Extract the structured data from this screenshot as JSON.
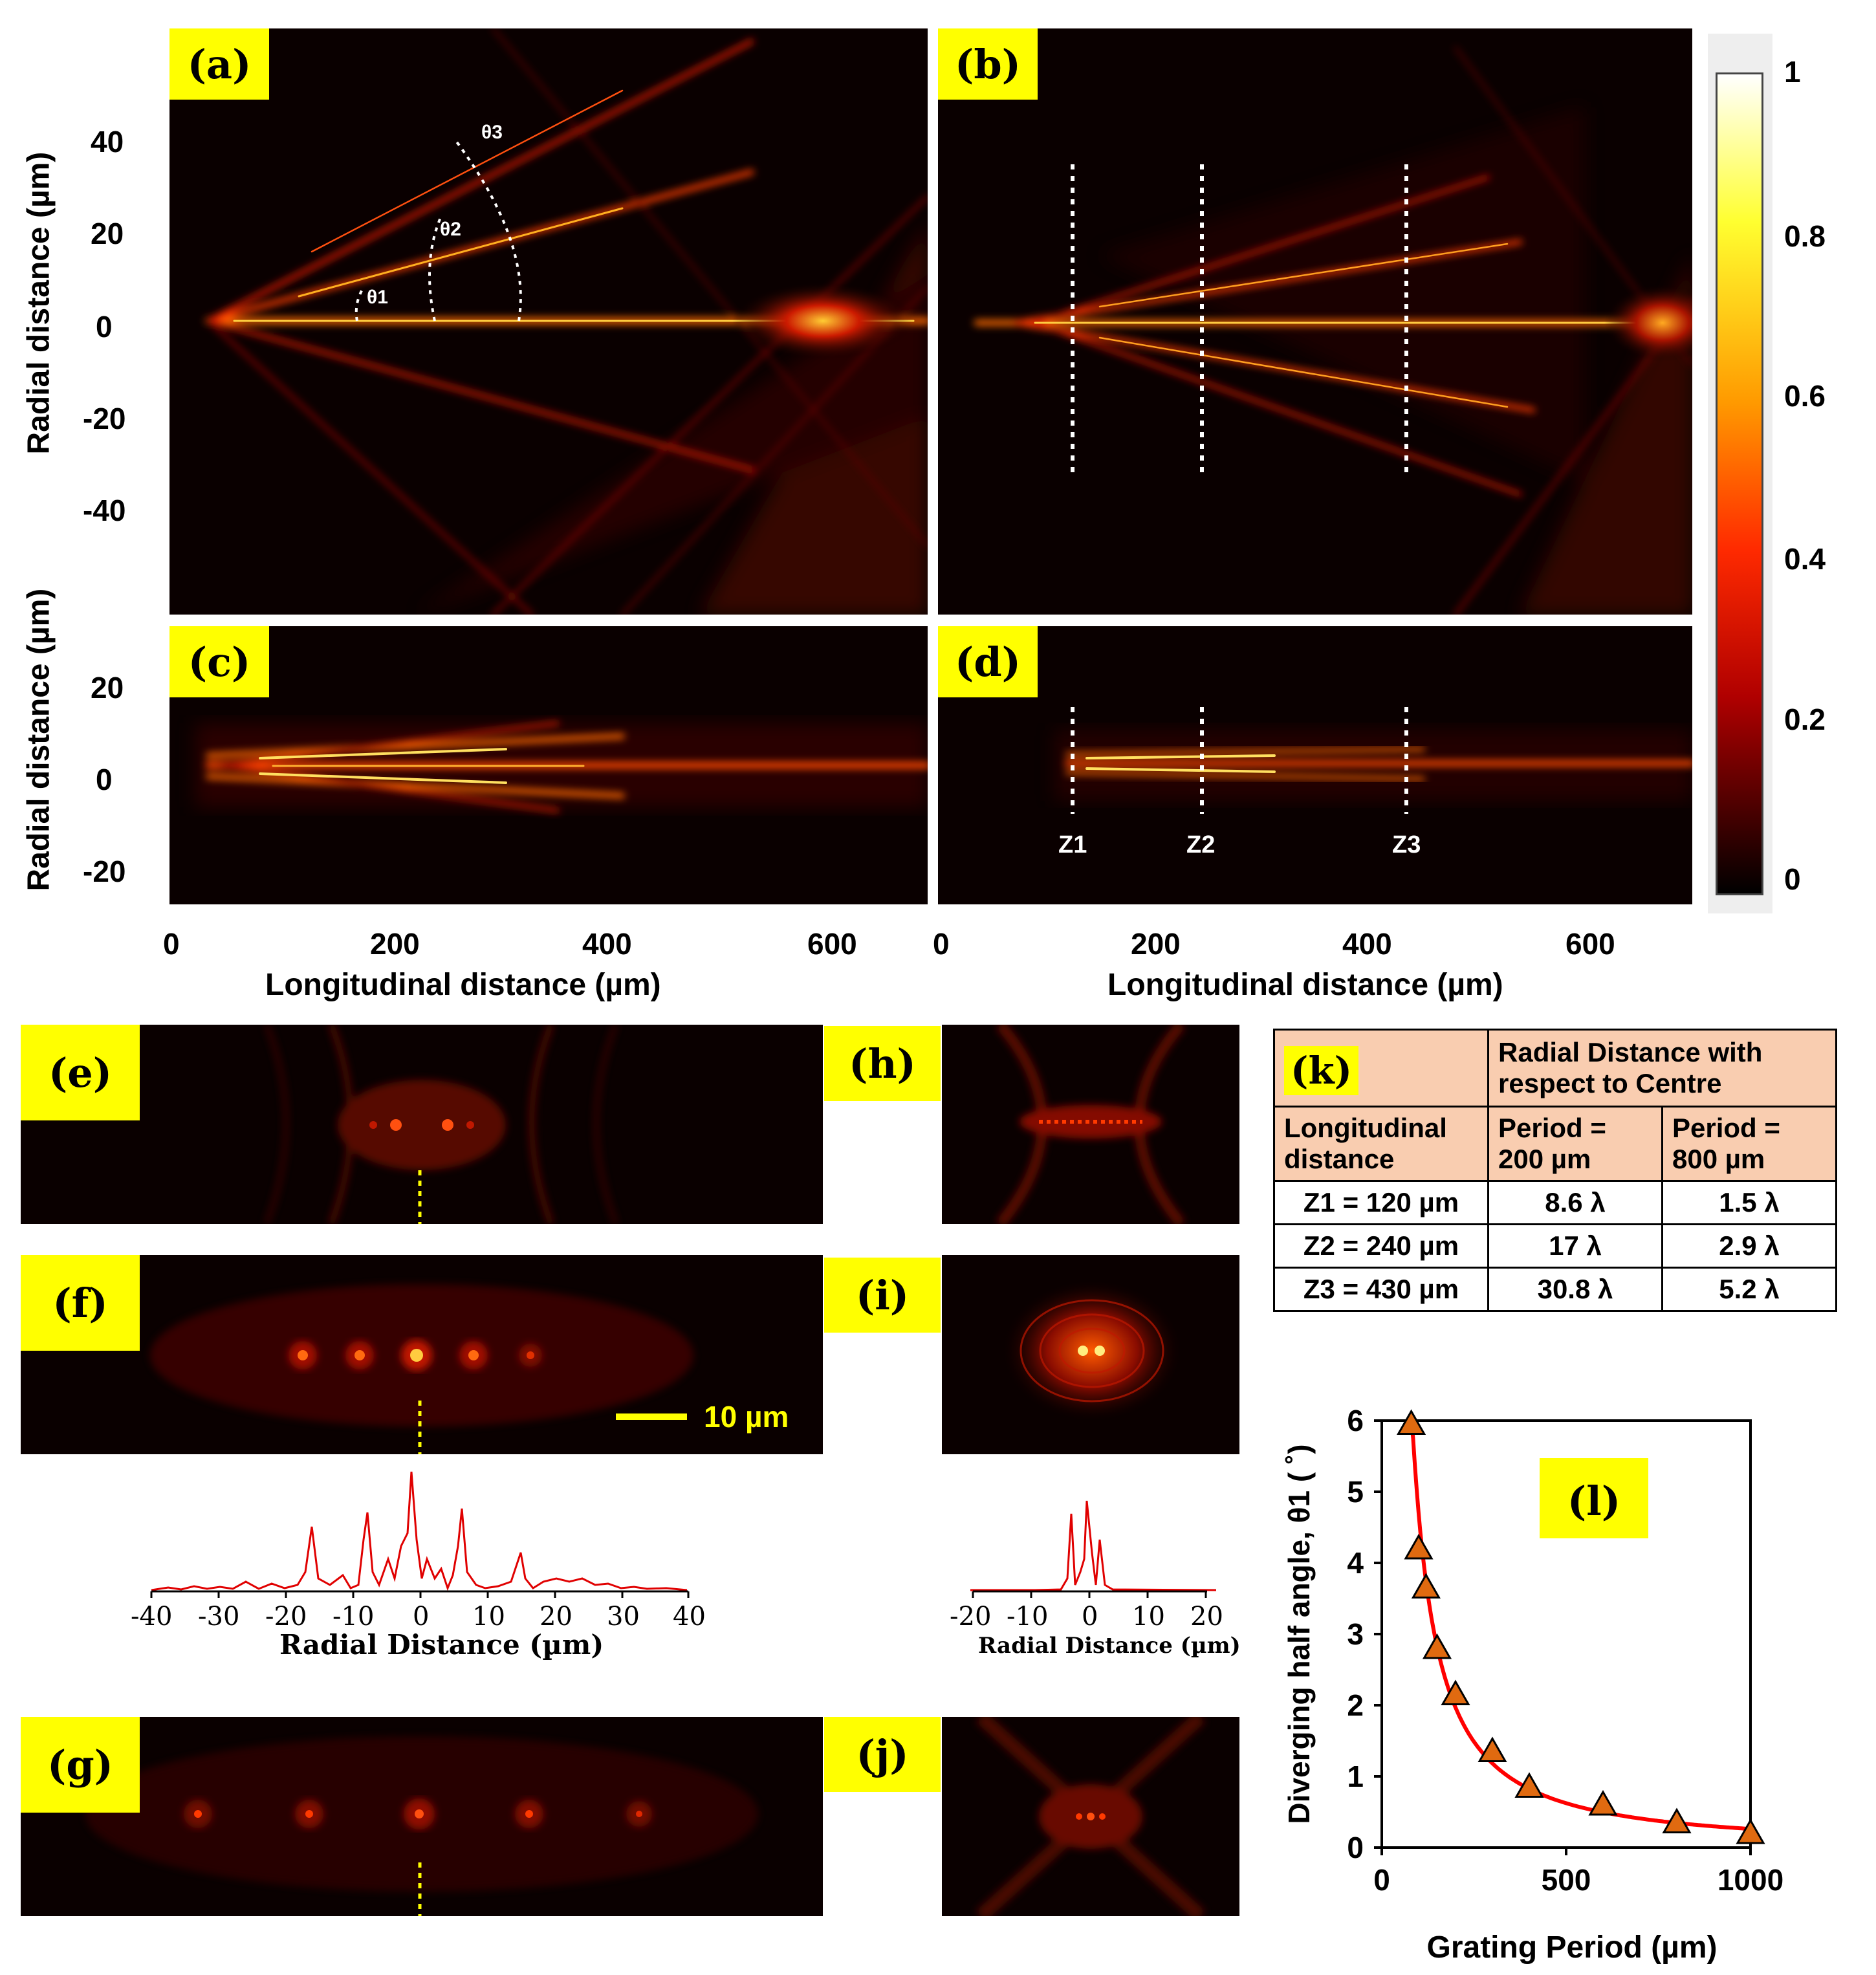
{
  "panels": {
    "a": {
      "tag": "(a)",
      "angles": [
        "θ1",
        "θ2",
        "θ3"
      ]
    },
    "b": {
      "tag": "(b)"
    },
    "c": {
      "tag": "(c)"
    },
    "d": {
      "tag": "(d)",
      "z_labels": [
        "Z1",
        "Z2",
        "Z3"
      ]
    },
    "e": {
      "tag": "(e)"
    },
    "f": {
      "tag": "(f)",
      "scale_bar": "10 µm"
    },
    "g": {
      "tag": "(g)"
    },
    "h": {
      "tag": "(h)"
    },
    "i": {
      "tag": "(i)"
    },
    "j": {
      "tag": "(j)"
    },
    "l": {
      "tag": "(l)"
    }
  },
  "top_axes": {
    "ylabel": "Radial distance (µm)",
    "yticks_ab": [
      "40",
      "20",
      "0",
      "-20",
      "-40"
    ],
    "yticks_cd": [
      "20",
      "0",
      "-20"
    ],
    "xticks": [
      "0",
      "200",
      "400",
      "600"
    ],
    "xlabel": "Longitudinal distance (µm)"
  },
  "colorbar": {
    "ticks": [
      "1",
      "0.8",
      "0.6",
      "0.4",
      "0.2",
      "0"
    ],
    "colors": [
      "#ffffff",
      "#ffff30",
      "#ff9a00",
      "#ff2a00",
      "#b00000",
      "#000000"
    ]
  },
  "profile_f": {
    "xticks": [
      "-40",
      "-30",
      "-20",
      "-10",
      "0",
      "10",
      "20",
      "30",
      "40"
    ],
    "xlabel": "Radial Distance (µm)"
  },
  "profile_i": {
    "xticks": [
      "-20",
      "-10",
      "0",
      "10",
      "20"
    ],
    "xlabel": "Radial Distance (µm)"
  },
  "table": {
    "tag": "(k)",
    "header_group": "Radial Distance with respect to Centre",
    "col_long": "Longitudinal distance",
    "col_p1": "Period = 200 µm",
    "col_p2": "Period = 800 µm",
    "rows": [
      {
        "z": "Z1 = 120 µm",
        "p1": "8.6 λ",
        "p2": "1.5 λ"
      },
      {
        "z": "Z2 = 240 µm",
        "p1": "17 λ",
        "p2": "2.9 λ"
      },
      {
        "z": "Z3 = 430 µm",
        "p1": "30.8 λ",
        "p2": "5.2 λ"
      }
    ]
  },
  "chart_data": {
    "type": "scatter",
    "title": "",
    "xlabel": "Grating Period (µm)",
    "ylabel": "Diverging half angle, θ1 ( ˚)",
    "xlim": [
      0,
      1000
    ],
    "ylim": [
      0,
      6
    ],
    "xticks": [
      "0",
      "500",
      "1000"
    ],
    "yticks": [
      "0",
      "1",
      "2",
      "3",
      "4",
      "5",
      "6"
    ],
    "x": [
      80,
      100,
      120,
      150,
      200,
      300,
      400,
      600,
      800,
      1000
    ],
    "y": [
      5.95,
      4.2,
      3.65,
      2.8,
      2.15,
      1.35,
      0.85,
      0.6,
      0.35,
      0.2
    ],
    "fit": "power-law trend line",
    "series_color": "#e06a10",
    "line_color": "#ff0000"
  }
}
